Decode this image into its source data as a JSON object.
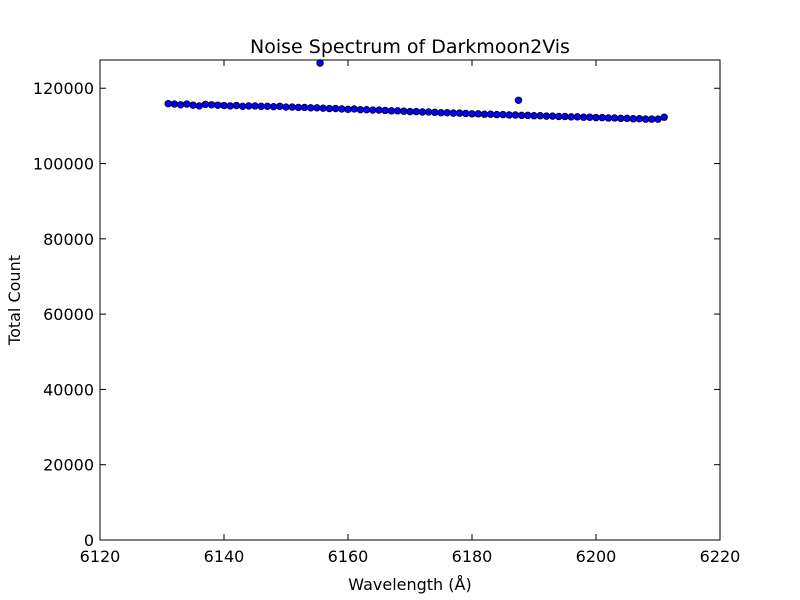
{
  "chart_data": {
    "type": "scatter",
    "title": "Noise Spectrum of Darkmoon2Vis",
    "xlabel": "Wavelength (Å)",
    "ylabel": "Total Count",
    "xlim": [
      6120,
      6220
    ],
    "ylim": [
      0,
      127500
    ],
    "xticks": [
      6120,
      6140,
      6160,
      6180,
      6200,
      6220
    ],
    "yticks": [
      0,
      20000,
      40000,
      60000,
      80000,
      100000,
      120000
    ],
    "grid": false,
    "marker_color": "#0000ff",
    "marker_edge_color": "#000000",
    "series": [
      {
        "x": [
          6131,
          6132,
          6133,
          6134,
          6135,
          6136,
          6137,
          6138,
          6139,
          6140,
          6141,
          6142,
          6143,
          6144,
          6145,
          6146,
          6147,
          6148,
          6149,
          6150,
          6151,
          6152,
          6153,
          6154,
          6155,
          6156,
          6157,
          6158,
          6159,
          6160,
          6161,
          6162,
          6163,
          6164,
          6165,
          6166,
          6167,
          6168,
          6169,
          6170,
          6171,
          6172,
          6173,
          6174,
          6175,
          6176,
          6177,
          6178,
          6179,
          6180,
          6181,
          6182,
          6183,
          6184,
          6185,
          6186,
          6187,
          6188,
          6189,
          6190,
          6191,
          6192,
          6193,
          6194,
          6195,
          6196,
          6197,
          6198,
          6199,
          6200,
          6201,
          6202,
          6203,
          6204,
          6205,
          6206,
          6207,
          6208,
          6209,
          6210,
          6211,
          6155.5,
          6187.5
        ],
        "y": [
          115900,
          115800,
          115600,
          115800,
          115500,
          115300,
          115700,
          115600,
          115500,
          115400,
          115300,
          115400,
          115200,
          115300,
          115300,
          115200,
          115200,
          115100,
          115200,
          115000,
          115000,
          114900,
          114900,
          114800,
          114800,
          114700,
          114600,
          114600,
          114500,
          114400,
          114500,
          114300,
          114300,
          114200,
          114200,
          114100,
          114000,
          114000,
          113900,
          113800,
          113800,
          113700,
          113700,
          113600,
          113500,
          113500,
          113400,
          113400,
          113300,
          113200,
          113200,
          113100,
          113100,
          113000,
          113000,
          112900,
          112900,
          112800,
          112800,
          112700,
          112700,
          112600,
          112600,
          112500,
          112500,
          112400,
          112400,
          112300,
          112300,
          112200,
          112200,
          112100,
          112100,
          112000,
          112000,
          111900,
          111900,
          111800,
          111800,
          111800,
          112300,
          126700,
          116800
        ]
      }
    ]
  }
}
